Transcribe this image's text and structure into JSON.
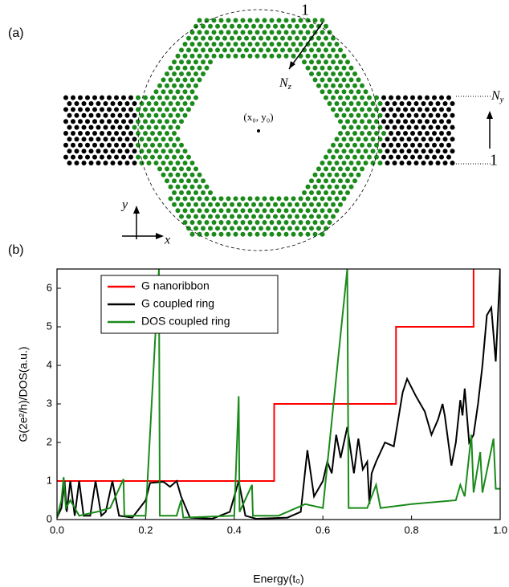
{
  "panel_a": {
    "label": "(a)",
    "ring_edge_index": "1",
    "nz": {
      "symbol": "N",
      "sub": "z"
    },
    "center": "(x₀, y₀)",
    "ny": {
      "symbol": "N",
      "sub": "y"
    },
    "ribbon_edge_index": "1",
    "y_axis": "y",
    "x_axis": "x"
  },
  "chart_data": {
    "type": "line",
    "label": "(b)",
    "x_label": "Energy(t₀)",
    "y_label": "G(2e²/h)/DOS(a.u.)",
    "xlim": [
      0,
      1
    ],
    "ylim": [
      0,
      6.5
    ],
    "xticks": [
      {
        "value": 0,
        "label": "0.0"
      },
      0.2,
      0.4,
      0.6,
      0.8,
      {
        "value": 1,
        "label": "1.0"
      }
    ],
    "yticks": [
      0,
      1,
      2,
      3,
      4,
      5,
      6
    ],
    "legend": "upper left",
    "series": [
      {
        "name": "G nanoribbon",
        "color": "#ff0000",
        "x": [
          0,
          0.49,
          0.49,
          0.765,
          0.765,
          0.94,
          0.94
        ],
        "values": [
          1,
          1,
          3,
          3,
          5,
          5,
          6.5
        ]
      },
      {
        "name": "G coupled ring",
        "color": "#000000",
        "x": [
          0,
          0.01,
          0.017,
          0.022,
          0.03,
          0.04,
          0.05,
          0.06,
          0.075,
          0.087,
          0.1,
          0.11,
          0.125,
          0.14,
          0.17,
          0.2,
          0.21,
          0.24,
          0.255,
          0.27,
          0.28,
          0.3,
          0.35,
          0.39,
          0.41,
          0.425,
          0.45,
          0.52,
          0.55,
          0.565,
          0.58,
          0.6,
          0.61,
          0.62,
          0.63,
          0.64,
          0.655,
          0.67,
          0.68,
          0.69,
          0.7,
          0.705,
          0.71,
          0.72,
          0.74,
          0.76,
          0.78,
          0.79,
          0.81,
          0.83,
          0.845,
          0.86,
          0.87,
          0.875,
          0.89,
          0.9,
          0.91,
          0.915,
          0.92,
          0.93,
          0.94,
          0.95,
          0.96,
          0.97,
          0.98,
          0.99,
          1
        ],
        "values": [
          0.05,
          0.3,
          1,
          0.2,
          1,
          0.1,
          1,
          0.1,
          0.1,
          1,
          0.1,
          0.2,
          1,
          0.1,
          0.05,
          0.5,
          0.95,
          0.98,
          0.85,
          1,
          0.6,
          0.05,
          0.02,
          0.2,
          1,
          0.1,
          0.02,
          0.05,
          0.2,
          1.8,
          0.6,
          1,
          1.5,
          1.2,
          2.2,
          1.6,
          2.4,
          1.2,
          2.1,
          1.3,
          1.5,
          0.4,
          1.2,
          1.5,
          2,
          1.9,
          3.3,
          3.65,
          3.2,
          2.8,
          2.2,
          2.6,
          3,
          2.7,
          1.4,
          2,
          3.1,
          2.7,
          3.4,
          2,
          2.2,
          3,
          4,
          5.3,
          5.5,
          4.1,
          6.5
        ]
      },
      {
        "name": "DOS coupled ring",
        "color": "#1a8a1a",
        "x": [
          0,
          0.01,
          0.015,
          0.02,
          0.03,
          0.05,
          0.09,
          0.12,
          0.15,
          0.152,
          0.2,
          0.23,
          0.232,
          0.27,
          0.28,
          0.285,
          0.4,
          0.41,
          0.412,
          0.44,
          0.442,
          0.5,
          0.56,
          0.6,
          0.655,
          0.658,
          0.7,
          0.72,
          0.73,
          0.8,
          0.9,
          0.91,
          0.92,
          0.935,
          0.94,
          0.955,
          0.96,
          0.985,
          0.99,
          1
        ],
        "values": [
          0.05,
          0.5,
          1.1,
          0.3,
          0.5,
          0.1,
          0.2,
          0.3,
          1.05,
          0.1,
          0.1,
          6.5,
          0.1,
          0.1,
          0.5,
          0.05,
          0.1,
          3.2,
          0.2,
          0.9,
          0.1,
          0.1,
          0.4,
          0.3,
          6.5,
          0.3,
          0.3,
          0.9,
          0.3,
          0.4,
          0.5,
          0.9,
          0.6,
          2.2,
          0.7,
          1.75,
          0.7,
          2.1,
          0.8,
          0.8
        ]
      }
    ]
  }
}
